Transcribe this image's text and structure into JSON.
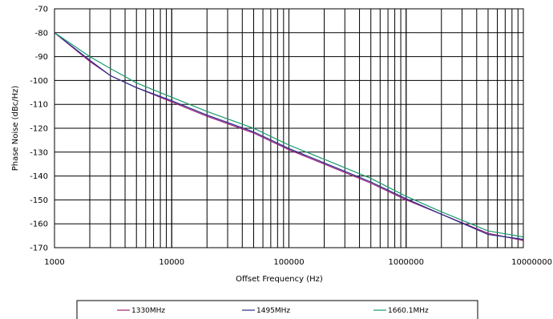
{
  "chart_data": {
    "type": "line",
    "xlabel": "Offset Frequency (Hz)",
    "ylabel": "Phase Noise (dBc/Hz)",
    "x_scale": "log",
    "xlim": [
      1000,
      10000000
    ],
    "ylim": [
      -170,
      -70
    ],
    "x_ticks": [
      "1000",
      "10000",
      "100000",
      "1000000",
      "10000000"
    ],
    "y_ticks": [
      "-70",
      "-80",
      "-90",
      "-100",
      "-110",
      "-120",
      "-130",
      "-140",
      "-150",
      "-160",
      "-170"
    ],
    "grid": true,
    "legend_position": "bottom",
    "x": [
      1000,
      2000,
      3000,
      5000,
      10000,
      20000,
      50000,
      100000,
      200000,
      500000,
      1000000,
      2000000,
      5000000,
      10000000
    ],
    "series": [
      {
        "name": "1330MHz",
        "color": "#a0207a",
        "values": [
          -80,
          -92,
          -98,
          -103,
          -109,
          -115,
          -122,
          -129,
          -135,
          -143,
          -150,
          -156,
          -164,
          -167
        ]
      },
      {
        "name": "1495MHz",
        "color": "#2a2a8c",
        "values": [
          -80,
          -91.5,
          -98,
          -103,
          -108.5,
          -114.5,
          -121.5,
          -128.5,
          -134.5,
          -142.5,
          -149.5,
          -156,
          -164.5,
          -166.5
        ]
      },
      {
        "name": "1660.1MHz",
        "color": "#1a9a70",
        "values": [
          -80,
          -90,
          -95,
          -101,
          -107,
          -113,
          -120,
          -127,
          -133,
          -141,
          -148.5,
          -155,
          -163,
          -165.5
        ]
      }
    ]
  }
}
